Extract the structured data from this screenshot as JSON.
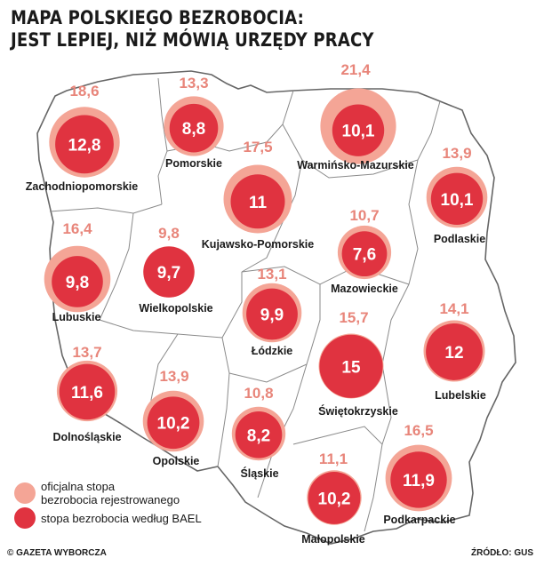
{
  "title": {
    "line1": "MAPA POLSKIEGO BEZROBOCIA:",
    "line2": "JEST LEPIEJ, NIŻ MÓWIĄ URZĘDY PRACY"
  },
  "colors": {
    "official": "#f4a596",
    "bael": "#e03340",
    "official_text": "#e8857a",
    "border": "#666666"
  },
  "regions": [
    {
      "name": "Zachodniopomorskie",
      "official": "18,6",
      "bael": "12,8"
    },
    {
      "name": "Pomorskie",
      "official": "13,3",
      "bael": "8,8"
    },
    {
      "name": "Warmińsko-Mazurskie",
      "official": "21,4",
      "bael": "10,1"
    },
    {
      "name": "Podlaskie",
      "official": "13,9",
      "bael": "10,1"
    },
    {
      "name": "Kujawsko-Pomorskie",
      "official": "17,5",
      "bael": "11"
    },
    {
      "name": "Lubuskie",
      "official": "16,4",
      "bael": "9,8"
    },
    {
      "name": "Wielkopolskie",
      "official": "9,8",
      "bael": "9,7"
    },
    {
      "name": "Mazowieckie",
      "official": "10,7",
      "bael": "7,6"
    },
    {
      "name": "Łódzkie",
      "official": "13,1",
      "bael": "9,9"
    },
    {
      "name": "Świętokrzyskie",
      "official": "15,7",
      "bael": "15"
    },
    {
      "name": "Lubelskie",
      "official": "14,1",
      "bael": "12"
    },
    {
      "name": "Dolnośląskie",
      "official": "13,7",
      "bael": "11,6"
    },
    {
      "name": "Opolskie",
      "official": "13,9",
      "bael": "10,2"
    },
    {
      "name": "Śląskie",
      "official": "10,8",
      "bael": "8,2"
    },
    {
      "name": "Małopolskie",
      "official": "11,1",
      "bael": "10,2"
    },
    {
      "name": "Podkarpackie",
      "official": "16,5",
      "bael": "11,9"
    }
  ],
  "legend": {
    "official_line1": "oficjalna stopa",
    "official_line2": "bezrobocia rejestrowanego",
    "bael": "stopa bezrobocia według BAEL"
  },
  "footer": {
    "copyright": "© GAZETA WYBORCZA",
    "source": "ŹRÓDŁO: GUS"
  }
}
